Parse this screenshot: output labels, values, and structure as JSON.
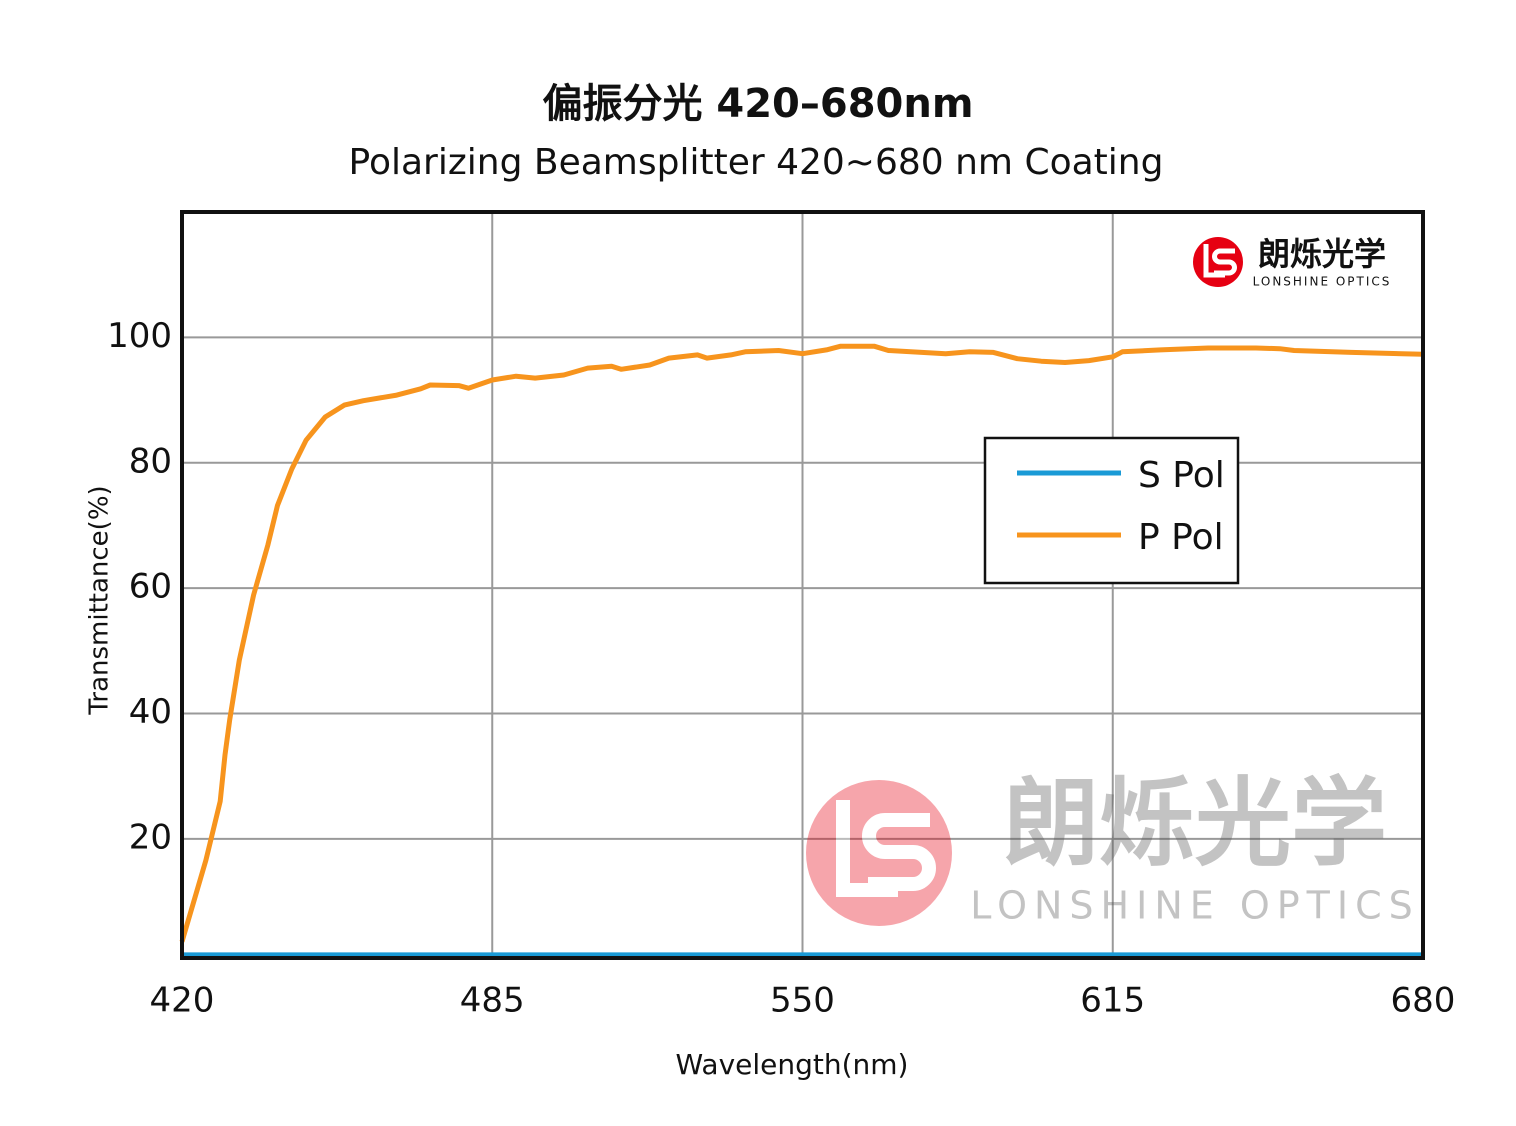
{
  "chart_data": {
    "type": "line",
    "title": "偏振分光 420–680nm",
    "subtitle": "Polarizing Beamsplitter 420~680 nm Coating",
    "xlabel": "Wavelength(nm)",
    "ylabel": "Transmittance(%)",
    "xlim": [
      420,
      680
    ],
    "xticks": [
      420,
      485,
      550,
      615,
      680
    ],
    "ylim": [
      1,
      120
    ],
    "yticks": [
      20,
      40,
      60,
      80,
      100
    ],
    "grid": true,
    "legend": "center right",
    "logo": {
      "name": "朗烁光学",
      "subtitle": "LONSHINE OPTICS"
    },
    "series": [
      {
        "name": "S Pol",
        "color": "#1a9ad6",
        "x": [
          420,
          680
        ],
        "values": [
          1.5,
          1.5
        ]
      },
      {
        "name": "P Pol",
        "color": "#f7941d",
        "x": [
          420,
          425,
          428,
          429,
          430,
          432,
          435,
          438,
          440,
          443,
          446,
          450,
          454,
          458,
          465,
          470,
          472,
          478,
          480,
          485,
          490,
          494,
          500,
          505,
          510,
          512,
          518,
          522,
          528,
          530,
          535,
          538,
          545,
          550,
          555,
          558,
          565,
          568,
          575,
          580,
          585,
          590,
          595,
          600,
          605,
          610,
          615,
          617,
          625,
          635,
          645,
          650,
          653,
          665,
          680
        ],
        "values": [
          3.6,
          16.6,
          26,
          33.4,
          39,
          48.5,
          58.9,
          66.9,
          73.2,
          79,
          83.6,
          87.3,
          89.2,
          89.9,
          90.8,
          91.8,
          92.4,
          92.3,
          91.9,
          93.2,
          93.8,
          93.5,
          94,
          95.1,
          95.4,
          94.9,
          95.6,
          96.7,
          97.2,
          96.7,
          97.2,
          97.7,
          97.9,
          97.4,
          98,
          98.6,
          98.6,
          97.9,
          97.6,
          97.4,
          97.7,
          97.6,
          96.6,
          96.2,
          96,
          96.3,
          96.9,
          97.7,
          98,
          98.3,
          98.3,
          98.2,
          97.9,
          97.6,
          97.3
        ]
      }
    ]
  }
}
